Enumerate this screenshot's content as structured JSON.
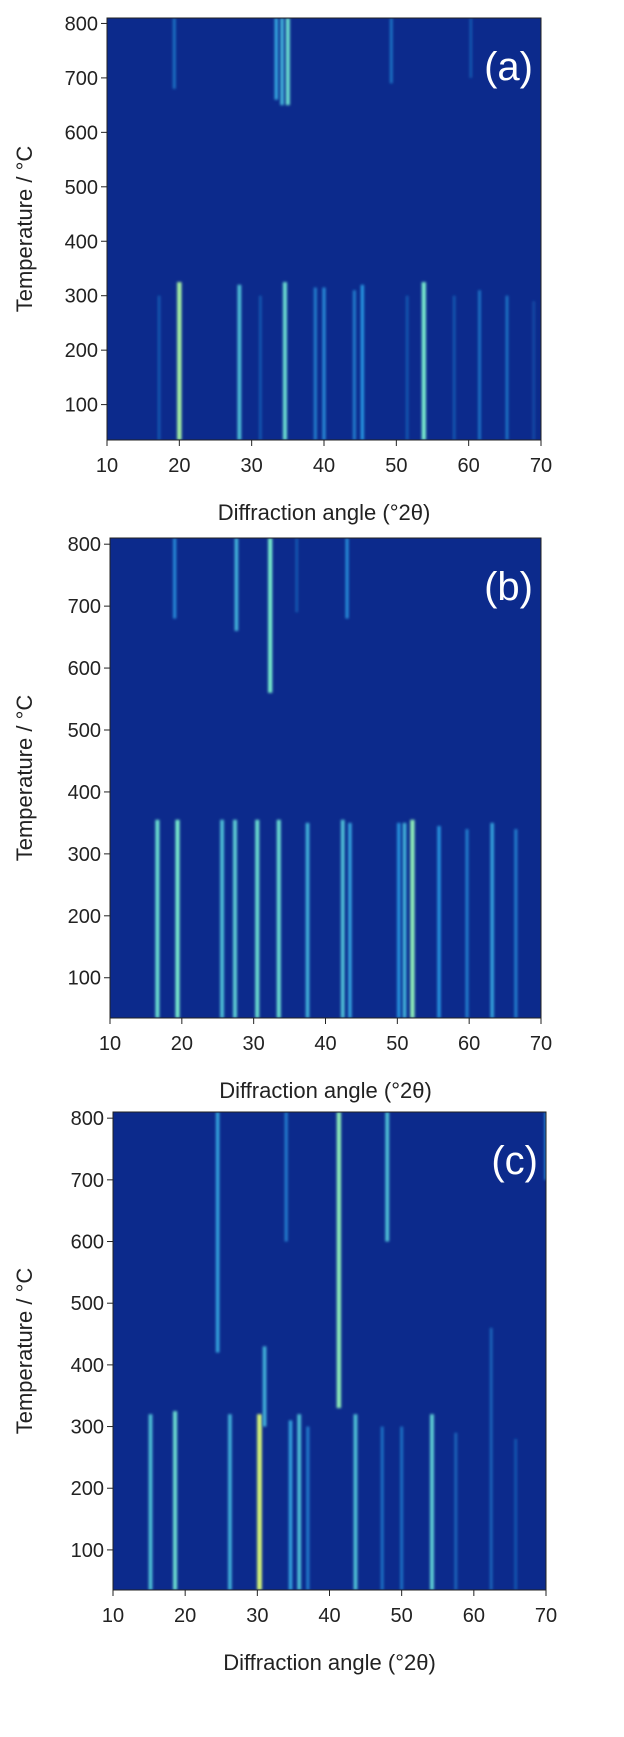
{
  "chart_data": [
    {
      "type": "heatmap",
      "label": "(a)",
      "xlabel": "Diffraction angle (°2θ)",
      "ylabel": "Temperature / °C",
      "xlim": [
        10,
        70
      ],
      "xticks": [
        10,
        20,
        30,
        40,
        50,
        60,
        70
      ],
      "ylim": [
        35,
        810
      ],
      "yticks": [
        100,
        200,
        300,
        400,
        500,
        600,
        700,
        800
      ],
      "background": "#0c2a8c",
      "x": [
        17.2,
        20.0,
        28.3,
        31.2,
        34.6,
        38.8,
        40.0,
        44.2,
        45.3,
        51.5,
        53.8,
        58.0,
        61.5,
        65.3,
        69.0,
        19.3,
        33.4,
        34.2,
        35.0,
        49.3,
        60.3
      ],
      "y_start": [
        35,
        35,
        35,
        35,
        35,
        35,
        35,
        35,
        35,
        35,
        35,
        35,
        35,
        35,
        35,
        680,
        660,
        650,
        650,
        690,
        700
      ],
      "y_end": [
        300,
        325,
        320,
        300,
        325,
        315,
        315,
        310,
        320,
        300,
        325,
        300,
        310,
        300,
        290,
        810,
        810,
        810,
        810,
        810,
        810
      ],
      "intensity": [
        0.2,
        0.85,
        0.6,
        0.2,
        0.7,
        0.35,
        0.4,
        0.35,
        0.45,
        0.2,
        0.75,
        0.2,
        0.3,
        0.3,
        0.15,
        0.3,
        0.5,
        0.55,
        0.7,
        0.3,
        0.2
      ]
    },
    {
      "type": "heatmap",
      "label": "(b)",
      "xlabel": "Diffraction angle (°2θ)",
      "ylabel": "Temperature / °C",
      "xlim": [
        10,
        70
      ],
      "xticks": [
        10,
        20,
        30,
        40,
        50,
        60,
        70
      ],
      "ylim": [
        35,
        810
      ],
      "yticks": [
        100,
        200,
        300,
        400,
        500,
        600,
        700,
        800
      ],
      "background": "#0c2a8c",
      "x": [
        16.6,
        19.4,
        25.6,
        27.4,
        30.5,
        33.5,
        37.5,
        42.4,
        43.4,
        50.2,
        51.0,
        52.1,
        55.8,
        59.7,
        63.2,
        66.5,
        19.0,
        27.6,
        32.3,
        36.0,
        43.0
      ],
      "y_start": [
        35,
        35,
        35,
        35,
        35,
        35,
        35,
        35,
        35,
        35,
        35,
        35,
        35,
        35,
        35,
        35,
        680,
        660,
        560,
        690,
        680
      ],
      "y_end": [
        355,
        355,
        355,
        355,
        355,
        355,
        350,
        355,
        350,
        350,
        350,
        355,
        345,
        340,
        350,
        340,
        810,
        810,
        810,
        810,
        810
      ],
      "intensity": [
        0.7,
        0.75,
        0.6,
        0.65,
        0.7,
        0.7,
        0.55,
        0.6,
        0.5,
        0.45,
        0.55,
        0.8,
        0.45,
        0.35,
        0.5,
        0.35,
        0.4,
        0.55,
        0.75,
        0.2,
        0.4
      ]
    },
    {
      "type": "heatmap",
      "label": "(c)",
      "xlabel": "Diffraction angle (°2θ)",
      "ylabel": "Temperature / °C",
      "xlim": [
        10,
        70
      ],
      "xticks": [
        10,
        20,
        30,
        40,
        50,
        60,
        70
      ],
      "ylim": [
        35,
        810
      ],
      "yticks": [
        100,
        200,
        300,
        400,
        500,
        600,
        700,
        800
      ],
      "background": "#0c2a8c",
      "x": [
        15.2,
        18.6,
        26.2,
        30.3,
        34.6,
        35.8,
        37.0,
        43.6,
        47.3,
        50.0,
        54.2,
        57.5,
        62.4,
        65.8,
        24.5,
        31.0,
        41.3,
        34.0,
        48.0,
        70.0
      ],
      "y_start": [
        35,
        35,
        35,
        35,
        35,
        35,
        35,
        35,
        35,
        35,
        35,
        35,
        35,
        35,
        420,
        300,
        330,
        600,
        600,
        700
      ],
      "y_end": [
        320,
        325,
        320,
        320,
        310,
        320,
        300,
        320,
        300,
        300,
        320,
        290,
        460,
        280,
        810,
        430,
        810,
        810,
        810,
        810
      ],
      "intensity": [
        0.6,
        0.7,
        0.55,
        0.95,
        0.5,
        0.6,
        0.35,
        0.6,
        0.3,
        0.3,
        0.65,
        0.25,
        0.25,
        0.2,
        0.5,
        0.55,
        0.8,
        0.35,
        0.6,
        0.4
      ]
    }
  ]
}
